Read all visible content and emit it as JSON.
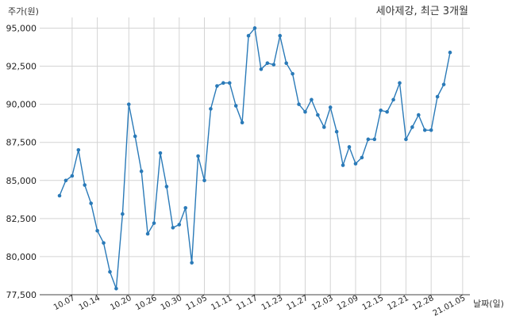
{
  "chart_data": {
    "type": "line",
    "title": "세아제강, 최근 3개월",
    "ylabel": "주가(원)",
    "xlabel": "날짜(일)",
    "ylim": [
      77500,
      95700
    ],
    "yticks": [
      77500,
      80000,
      82500,
      85000,
      87500,
      90000,
      92500,
      95000
    ],
    "ytick_labels": [
      "77,500",
      "80,000",
      "82,500",
      "85,000",
      "87,500",
      "90,000",
      "92,500",
      "95,000"
    ],
    "xtick_labels": [
      "10.07",
      "10.14",
      "10.20",
      "10.26",
      "10.30",
      "11.05",
      "11.11",
      "11.17",
      "11.23",
      "11.27",
      "12.03",
      "12.09",
      "12.15",
      "12.21",
      "12.28",
      "21.01.05"
    ],
    "xtick_index": [
      2,
      6,
      11,
      15,
      19,
      23,
      27,
      31,
      35,
      39,
      43,
      47,
      51,
      55,
      59,
      64
    ],
    "grid": true,
    "line_color": "#2a7ab8",
    "series": [
      {
        "values": [
          84000,
          85000,
          85300,
          87000,
          84700,
          83500,
          81700,
          80900,
          79000,
          77900,
          82800,
          90000,
          87900,
          85600,
          81500,
          82200,
          86800,
          84600,
          81900,
          82100,
          83200,
          79600,
          86600,
          85000,
          89700,
          91200,
          91400,
          91400,
          89900,
          88800,
          94500,
          95000,
          92300,
          92700,
          92600,
          94500,
          92700,
          92000,
          90000,
          89500,
          90300,
          89300,
          88500,
          89800,
          88200,
          86000,
          87200,
          86100,
          86500,
          87700,
          87700,
          89600,
          89500,
          90300,
          91400,
          87700,
          88500,
          89300,
          88300,
          88300,
          90500,
          91300,
          93400
        ]
      }
    ]
  }
}
